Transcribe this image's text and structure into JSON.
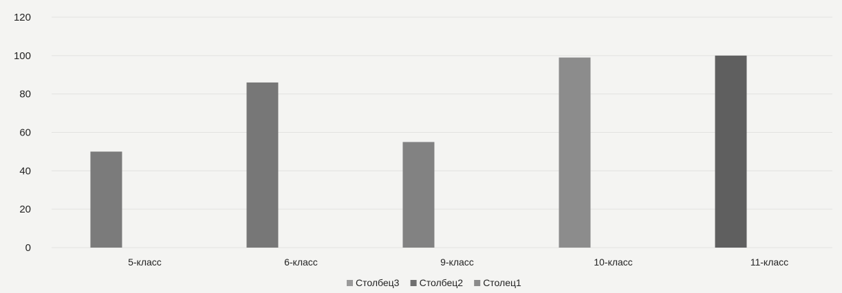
{
  "chart_data": {
    "type": "bar",
    "categories": [
      "5-класс",
      "6-класс",
      "9-класс",
      "10-класс",
      "11-класс"
    ],
    "series": [
      {
        "name": "Столбец3",
        "color": "#9a9a9a",
        "values": [
          null,
          null,
          null,
          null,
          null
        ]
      },
      {
        "name": "Столбец2",
        "color": "#6f6f6f",
        "values": [
          null,
          null,
          null,
          null,
          null
        ]
      },
      {
        "name": "Столец1",
        "color": "#8a8a8a",
        "values": [
          50,
          86,
          55,
          99,
          100
        ]
      }
    ],
    "bar_colors": [
      "#7b7b7b",
      "#777777",
      "#828282",
      "#8c8c8c",
      "#5f5f5f"
    ],
    "y_ticks": [
      0,
      20,
      40,
      60,
      80,
      100,
      120
    ],
    "ylim": [
      0,
      120
    ],
    "grid": true,
    "legend_position": "bottom"
  }
}
